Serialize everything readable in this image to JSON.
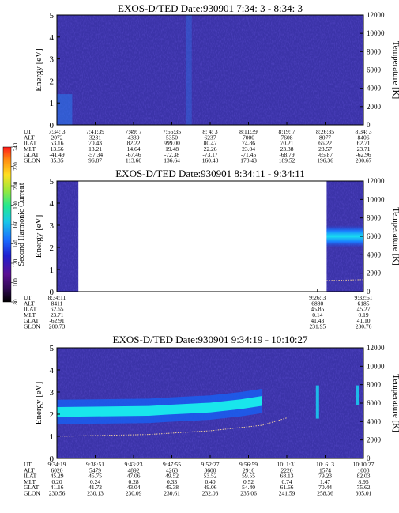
{
  "chart_data": [
    {
      "type": "heatmap",
      "title": "EXOS-D/TED   Date:930901  7:34: 3 - 8:34: 3",
      "ylabel": "Energy [eV]",
      "y2label": "Temperature [K]",
      "ylim": [
        0,
        5
      ],
      "y2lim": [
        0,
        12000
      ],
      "yticks": [
        "0",
        "1",
        "2",
        "3",
        "4",
        "5"
      ],
      "y2ticks": [
        "0",
        "2000",
        "4000",
        "6000",
        "8000",
        "10000",
        "12000"
      ],
      "row_labels": [
        "UT",
        "ALT",
        "ILAT",
        "MLT",
        "GLAT",
        "GLON"
      ],
      "columns": [
        [
          "7:34: 3",
          "2072",
          "53.16",
          "13.66",
          "-41.49",
          "85.35"
        ],
        [
          "7:41:39",
          "3231",
          "70.43",
          "13.21",
          "-57.34",
          "96.87"
        ],
        [
          "7:49: 7",
          "4339",
          "82.22",
          "14.64",
          "-67.46",
          "113.60"
        ],
        [
          "7:56:35",
          "5350",
          "999.00",
          "19.48",
          "-72.38",
          "136.64"
        ],
        [
          "8: 4: 3",
          "6237",
          "80.47",
          "22.26",
          "-73.17",
          "160.48"
        ],
        [
          "8:11:39",
          "7000",
          "74.86",
          "23.04",
          "-71.45",
          "178.43"
        ],
        [
          "8:19: 7",
          "7608",
          "70.21",
          "23.38",
          "-68.79",
          "189.52"
        ],
        [
          "8:26:35",
          "8077",
          "66.22",
          "23.57",
          "-65.87",
          "196.36"
        ],
        [
          "8:34: 3",
          "8406",
          "62.71",
          "23.71",
          "-62.96",
          "200.67"
        ]
      ],
      "features": [
        {
          "start": 0.0,
          "end": 0.05,
          "emin": 0.0,
          "emax": 1.4,
          "level": 0.55
        },
        {
          "start": 0.42,
          "end": 0.44,
          "emin": 0.0,
          "emax": 5.0,
          "level": 0.35
        }
      ]
    },
    {
      "type": "heatmap",
      "title": "EXOS-D/TED   Date:930901  8:34:11 - 9:34:11",
      "ylabel": "Energy [eV]",
      "y2label": "Temperature [K]",
      "ylim": [
        0,
        5
      ],
      "y2lim": [
        0,
        12000
      ],
      "yticks": [
        "0",
        "1",
        "2",
        "3",
        "4",
        "5"
      ],
      "y2ticks": [
        "0",
        "2000",
        "4000",
        "6000",
        "8000",
        "10000",
        "12000"
      ],
      "row_labels": [
        "UT",
        "ALT",
        "ILAT",
        "MLT",
        "GLAT",
        "GLON"
      ],
      "column_fracs": [
        0.0,
        0.85,
        1.0
      ],
      "columns": [
        [
          "8:34:11",
          "8411",
          "62.65",
          "23.71",
          "-62.91",
          "200.73"
        ],
        [
          "9:26: 3",
          "6880",
          "45.85",
          "0.14",
          "41.43",
          "231.95"
        ],
        [
          "9:32:51",
          "6185",
          "45.27",
          "0.19",
          "41.10",
          "230.76"
        ]
      ],
      "data_segments": [
        [
          0.0,
          0.07
        ],
        [
          0.88,
          1.0
        ]
      ],
      "band": {
        "start": 0.88,
        "end": 1.0,
        "center": 2.5,
        "width": 0.5
      },
      "temperature": [
        [
          0.88,
          1200
        ],
        [
          1.0,
          1300
        ]
      ]
    },
    {
      "type": "heatmap",
      "title": "EXOS-D/TED   Date:930901  9:34:19 - 10:10:27",
      "ylabel": "Energy [eV]",
      "y2label": "Temperature [K]",
      "ylim": [
        0,
        5
      ],
      "y2lim": [
        0,
        12000
      ],
      "yticks": [
        "0",
        "1",
        "2",
        "3",
        "4",
        "5"
      ],
      "y2ticks": [
        "0",
        "2000",
        "4000",
        "6000",
        "8000",
        "10000",
        "12000"
      ],
      "row_labels": [
        "UT",
        "ALT",
        "ILAT",
        "MLT",
        "GLAT",
        "GLON"
      ],
      "column_fracs": [
        0.0,
        0.125,
        0.25,
        0.375,
        0.5,
        0.625,
        0.75,
        0.875,
        1.0
      ],
      "columns": [
        [
          "9:34:19",
          "6020",
          "45.29",
          "0.20",
          "41.16",
          "230.56"
        ],
        [
          "9:38:51",
          "5479",
          "45.75",
          "0.24",
          "41.72",
          "230.13"
        ],
        [
          "9:43:23",
          "4892",
          "47.06",
          "0.28",
          "43.04",
          "230.09"
        ],
        [
          "9:47:55",
          "4263",
          "49.52",
          "0.33",
          "45.38",
          "230.61"
        ],
        [
          "9:52:27",
          "3600",
          "53.52",
          "0.40",
          "49.06",
          "232.03"
        ],
        [
          "9:56:59",
          "2916",
          "59.55",
          "0.52",
          "54.40",
          "235.06"
        ],
        [
          "10: 1:31",
          "2220",
          "68.13",
          "0.74",
          "61.66",
          "241.59"
        ],
        [
          "10: 6: 3",
          "1574",
          "79.23",
          "1.47",
          "70.44",
          "258.36"
        ],
        [
          "10:10:27",
          "1008",
          "82.03",
          "8.95",
          "75.62",
          "305.01"
        ]
      ],
      "band": [
        [
          0.0,
          2.1
        ],
        [
          0.3,
          2.15
        ],
        [
          0.36,
          2.2
        ],
        [
          0.5,
          2.3
        ],
        [
          0.6,
          2.45
        ],
        [
          0.67,
          2.6
        ]
      ],
      "temperature": [
        [
          0.0,
          2400
        ],
        [
          0.3,
          2600
        ],
        [
          0.5,
          3000
        ],
        [
          0.67,
          3600
        ],
        [
          0.75,
          4400
        ]
      ],
      "spikes": [
        {
          "at": 0.85,
          "emin": 1.8,
          "emax": 3.3
        },
        {
          "at": 0.98,
          "emin": 2.4,
          "emax": 3.3
        }
      ]
    }
  ],
  "colorbar": {
    "label": "Second Harmonic Current",
    "ticks": [
      "80",
      "100",
      "120",
      "140",
      "160",
      "180",
      "200",
      "220",
      "240"
    ],
    "colors": [
      "#000000",
      "#2d0a4e",
      "#5b1094",
      "#1f1fd0",
      "#1a6cff",
      "#19c8e8",
      "#22e890",
      "#9ae83a",
      "#ffe020",
      "#ff8a10",
      "#ff1a1a"
    ]
  }
}
